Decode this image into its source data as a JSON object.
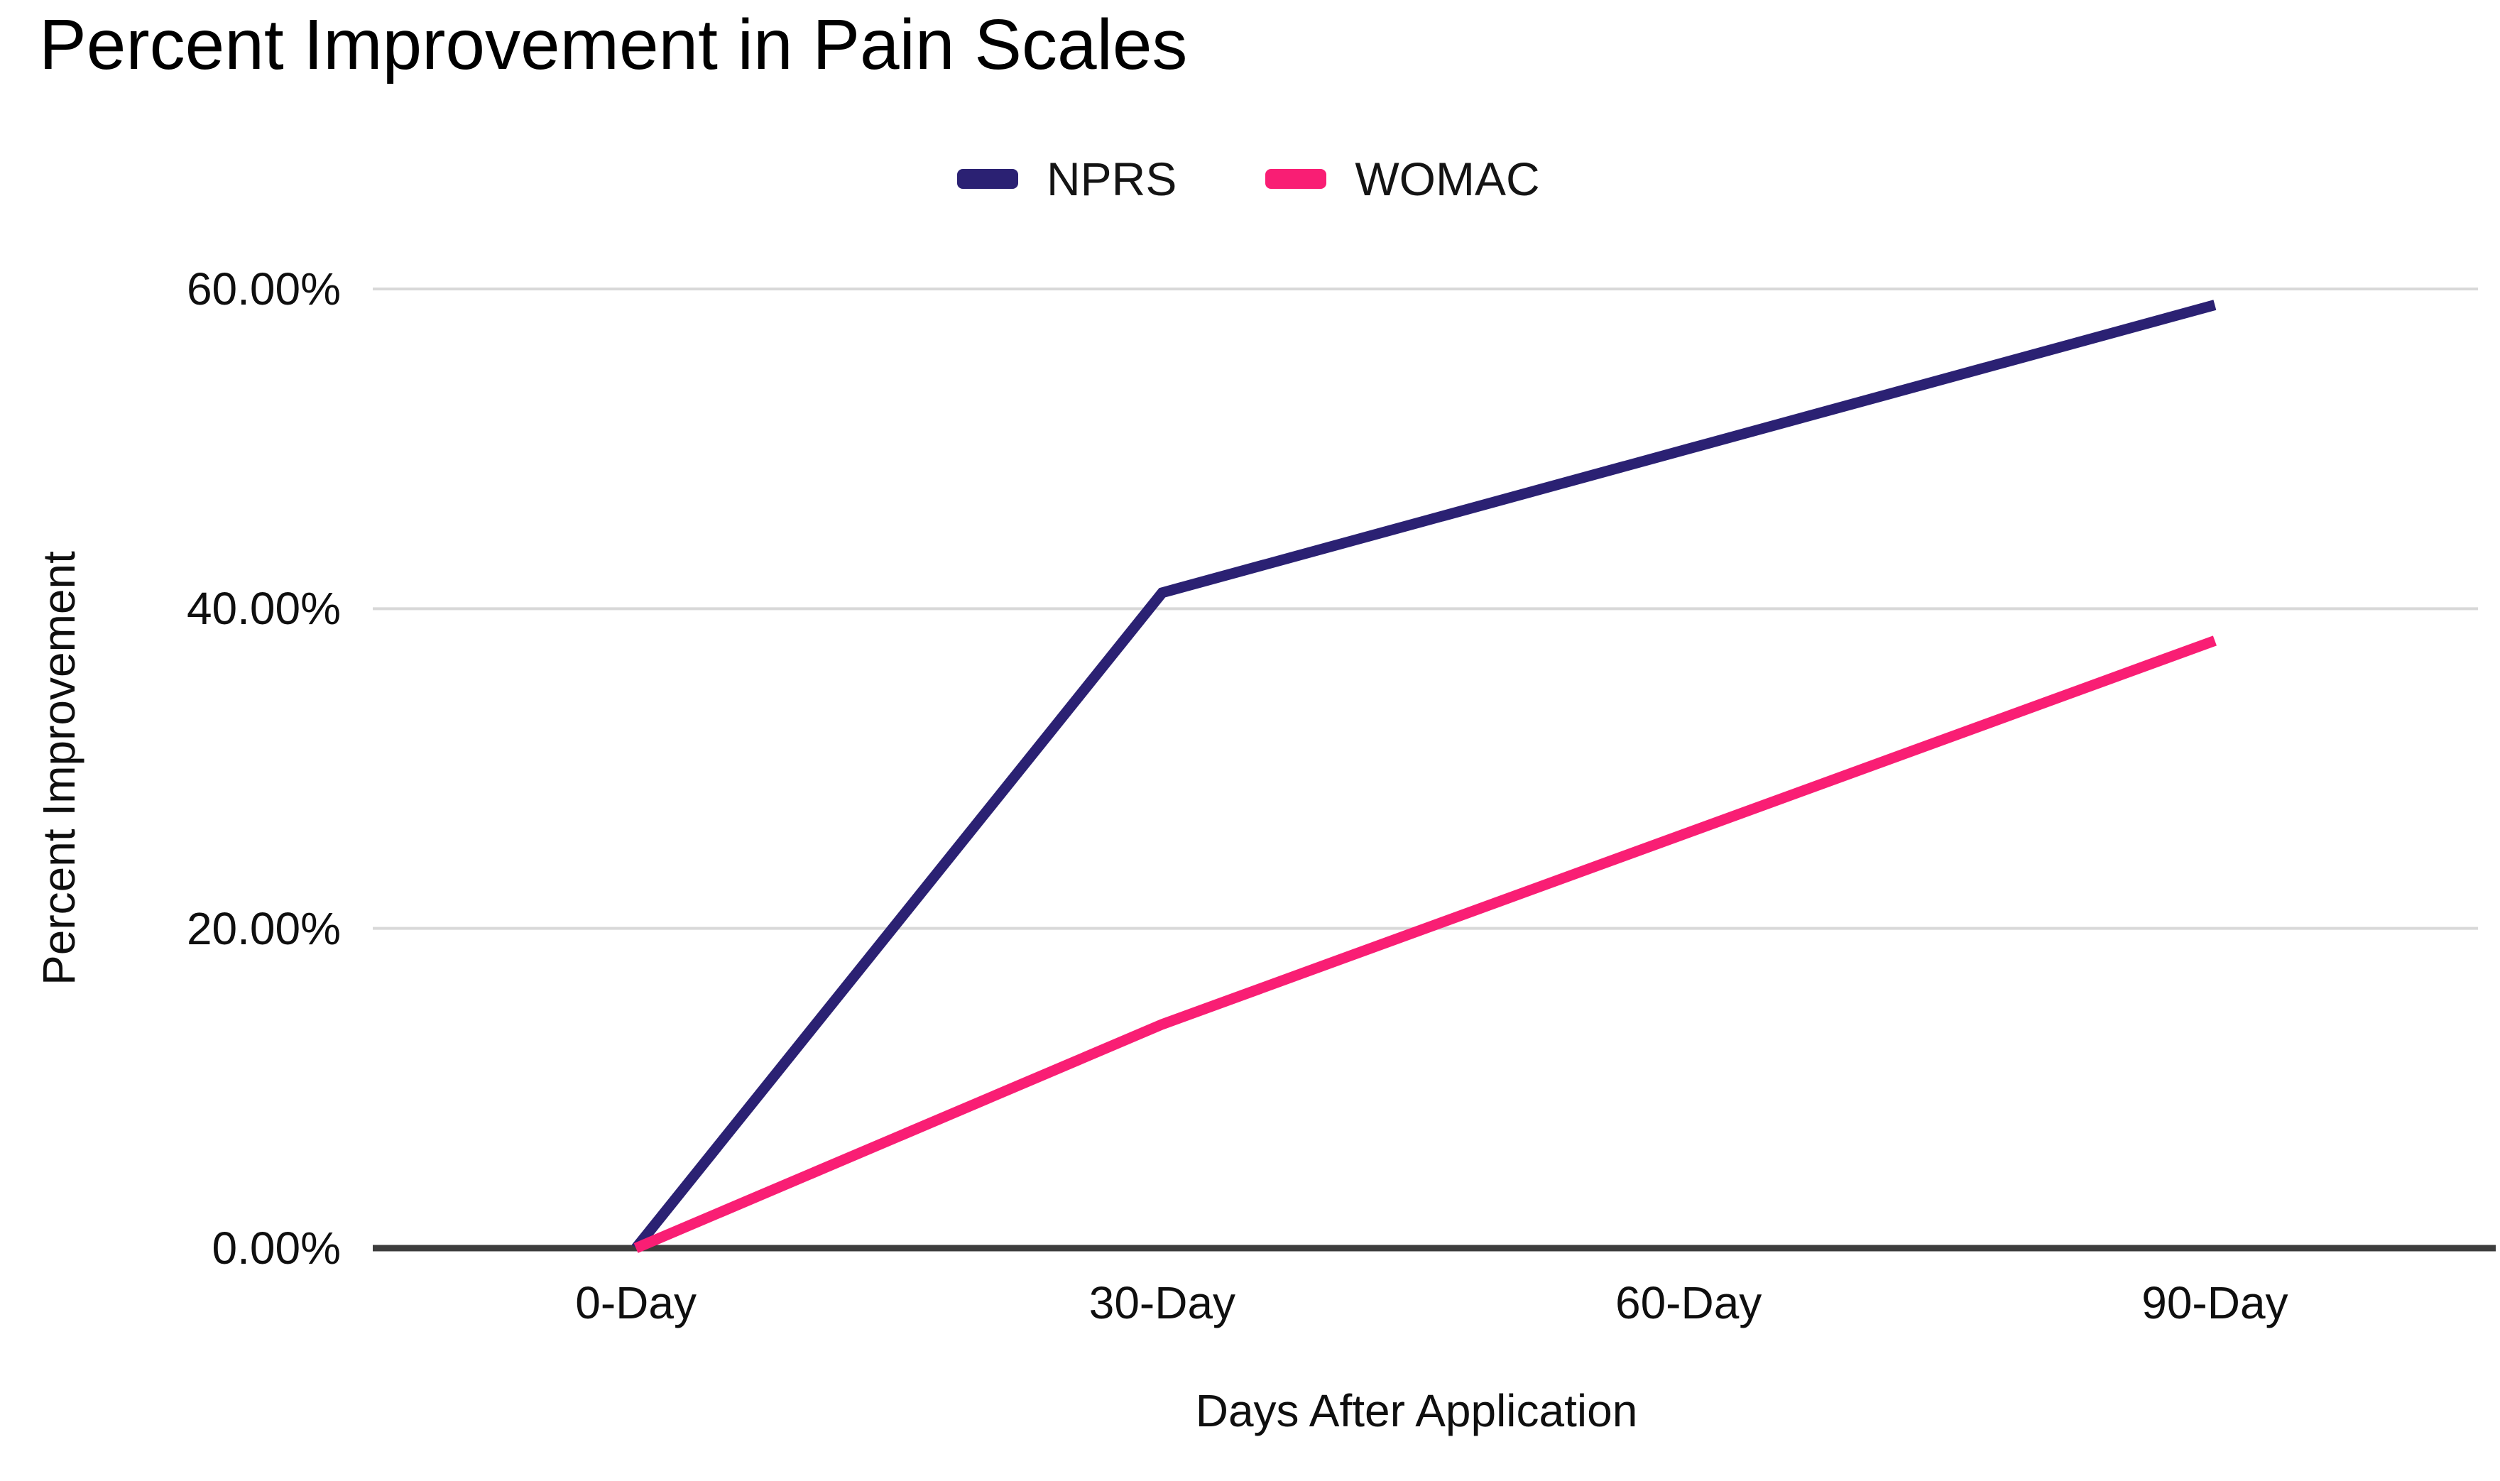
{
  "chart_data": {
    "type": "line",
    "title": "Percent Improvement in Pain Scales",
    "xlabel": "Days After Application",
    "ylabel": "Percent Improvement",
    "categories": [
      "0-Day",
      "30-Day",
      "60-Day",
      "90-Day"
    ],
    "series": [
      {
        "name": "NPRS",
        "color": "#2B2173",
        "values": [
          0,
          41,
          50,
          59
        ]
      },
      {
        "name": "WOMAC",
        "color": "#F91E74",
        "values": [
          0,
          14,
          26,
          38
        ]
      }
    ],
    "y_ticks": [
      "0.00%",
      "20.00%",
      "40.00%",
      "60.00%"
    ],
    "y_tick_values": [
      0,
      20,
      40,
      60
    ],
    "ylim": [
      0,
      60
    ],
    "unit": "%",
    "legend_position": "top",
    "grid": true,
    "gridline_color": "#D8D8D8",
    "axis_line_color": "#3D3D3D",
    "background_color": "#FFFFFF",
    "text_color": "#0F0F0F"
  }
}
